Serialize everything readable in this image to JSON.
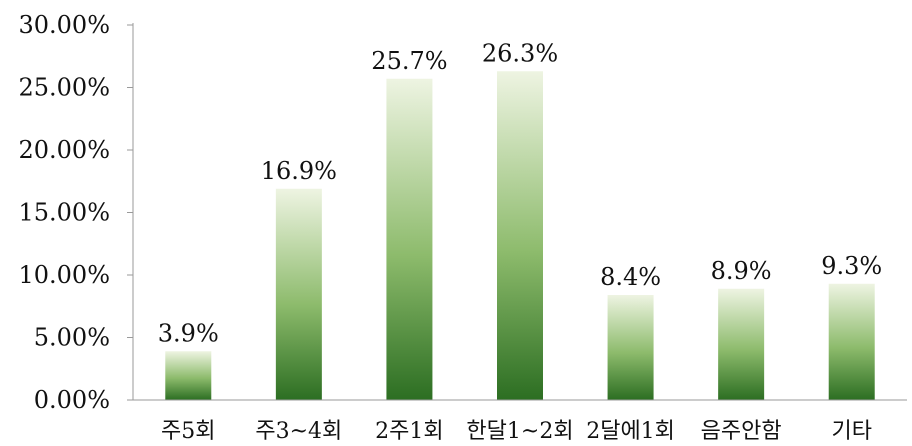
{
  "chart_data": {
    "type": "bar",
    "categories": [
      "주5회",
      "주3~4회",
      "2주1회",
      "한달1~2회",
      "2달에1회",
      "음주안함",
      "기타"
    ],
    "values": [
      3.9,
      16.9,
      25.7,
      26.3,
      8.4,
      8.9,
      9.3
    ],
    "data_labels": [
      "3.9%",
      "16.9%",
      "25.7%",
      "26.3%",
      "8.4%",
      "8.9%",
      "9.3%"
    ],
    "ylim": [
      0,
      30
    ],
    "yticks": [
      0,
      5,
      10,
      15,
      20,
      25,
      30
    ],
    "ytick_labels": [
      "0.00%",
      "5.00%",
      "10.00%",
      "15.00%",
      "20.00%",
      "25.00%",
      "30.00%"
    ],
    "grid": false,
    "legend": "none",
    "bar_color_top": "#eef4e2",
    "bar_color_bottom": "#2c6e22"
  }
}
